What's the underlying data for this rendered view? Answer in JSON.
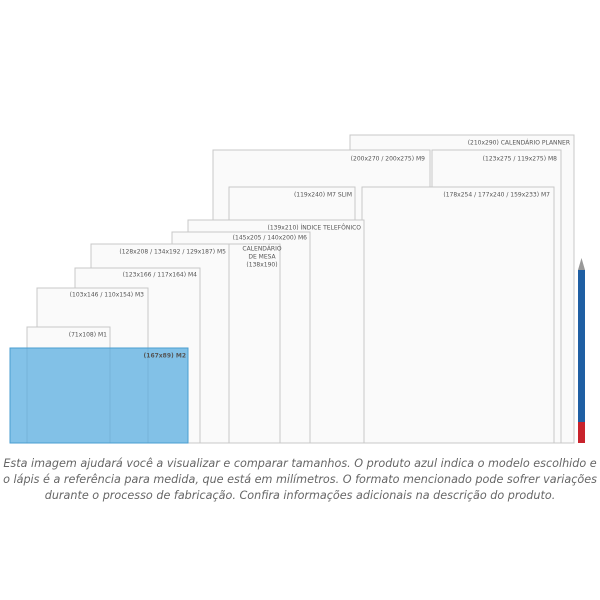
{
  "formats": [
    {
      "label": "(210x290) CALENDÁRIO PLANNER"
    },
    {
      "label": "(200x270 / 200x275) M9"
    },
    {
      "label": "(123x275 / 119x275) M8"
    },
    {
      "label": "(119x240) M7 SLIM"
    },
    {
      "label": "(178x254 / 177x240 / 159x233) M7"
    },
    {
      "label": "(139x210) ÍNDICE TELEFÔNICO"
    },
    {
      "label": "(145x205 / 140x200) M6"
    },
    {
      "label": "(128x208 / 134x192 / 129x187) M5"
    },
    {
      "label": "CALENDÁRIO"
    },
    {
      "label": "DE MESA"
    },
    {
      "label": "(138x190)"
    },
    {
      "label": "(123x166 / 117x164) M4"
    },
    {
      "label": "(103x146 / 110x154) M3"
    },
    {
      "label": "(71x108) M1"
    },
    {
      "label": "(167x89) M2"
    }
  ],
  "caption": [
    "Esta imagem ajudará você a visualizar e comparar tamanhos. O produto azul indica o modelo escolhido e",
    "o lápis é a referência para medida, que está em milímetros. O formato mencionado pode sofrer variações",
    "durante o processo de fabricação. Confira informações adicionais na descrição do produto."
  ]
}
